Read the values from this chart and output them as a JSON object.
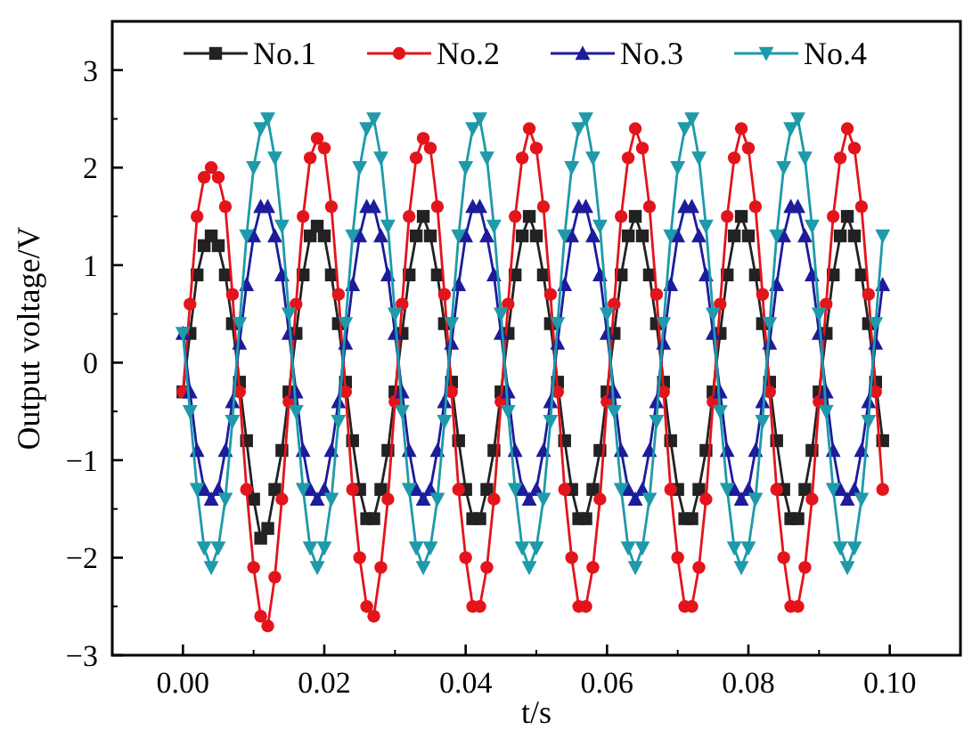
{
  "chart_data": {
    "type": "line",
    "xlabel": "t/s",
    "ylabel": "Output voltage/V",
    "x": [
      0,
      0.001,
      0.002,
      0.003,
      0.004,
      0.005,
      0.006,
      0.007,
      0.008,
      0.009,
      0.01,
      0.011,
      0.012,
      0.013,
      0.014,
      0.015,
      0.016,
      0.017,
      0.018,
      0.019,
      0.02,
      0.021,
      0.022,
      0.023,
      0.024,
      0.025,
      0.026,
      0.027,
      0.028,
      0.029,
      0.03,
      0.031,
      0.032,
      0.033,
      0.034,
      0.035,
      0.036,
      0.037,
      0.038,
      0.039,
      0.04,
      0.041,
      0.042,
      0.043,
      0.044,
      0.045,
      0.046,
      0.047,
      0.048,
      0.049,
      0.05,
      0.051,
      0.052,
      0.053,
      0.054,
      0.055,
      0.056,
      0.057,
      0.058,
      0.059,
      0.06,
      0.061,
      0.062,
      0.063,
      0.064,
      0.065,
      0.066,
      0.067,
      0.068,
      0.069,
      0.07,
      0.071,
      0.072,
      0.073,
      0.074,
      0.075,
      0.076,
      0.077,
      0.078,
      0.079,
      0.08,
      0.081,
      0.082,
      0.083,
      0.084,
      0.085,
      0.086,
      0.087,
      0.088,
      0.089,
      0.09,
      0.091,
      0.092,
      0.093,
      0.094,
      0.095,
      0.096,
      0.097,
      0.098,
      0.099
    ],
    "series": [
      {
        "name": "No.1",
        "color": "#222222",
        "marker": "square",
        "values": [
          -0.3,
          0.3,
          0.9,
          1.2,
          1.3,
          1.2,
          0.9,
          0.4,
          -0.2,
          -0.8,
          -1.4,
          -1.8,
          -1.7,
          -1.3,
          -0.9,
          -0.3,
          0.3,
          0.9,
          1.3,
          1.4,
          1.3,
          0.9,
          0.4,
          -0.2,
          -0.8,
          -1.3,
          -1.6,
          -1.6,
          -1.3,
          -0.9,
          -0.3,
          0.3,
          0.9,
          1.3,
          1.5,
          1.3,
          0.9,
          0.4,
          -0.2,
          -0.8,
          -1.3,
          -1.6,
          -1.6,
          -1.3,
          -0.9,
          -0.3,
          0.3,
          0.9,
          1.3,
          1.5,
          1.3,
          0.9,
          0.4,
          -0.2,
          -0.8,
          -1.3,
          -1.6,
          -1.6,
          -1.3,
          -0.9,
          -0.3,
          0.3,
          0.9,
          1.3,
          1.5,
          1.3,
          0.9,
          0.4,
          -0.2,
          -0.8,
          -1.3,
          -1.6,
          -1.6,
          -1.3,
          -0.9,
          -0.3,
          0.3,
          0.9,
          1.3,
          1.5,
          1.3,
          0.9,
          0.4,
          -0.2,
          -0.8,
          -1.3,
          -1.6,
          -1.6,
          -1.3,
          -0.9,
          -0.3,
          0.3,
          0.9,
          1.3,
          1.5,
          1.3,
          0.9,
          0.4,
          -0.2,
          -0.8
        ]
      },
      {
        "name": "No.2",
        "color": "#e3141c",
        "marker": "circle",
        "values": [
          -0.3,
          0.6,
          1.5,
          1.9,
          2.0,
          1.9,
          1.6,
          0.7,
          -0.3,
          -1.3,
          -2.1,
          -2.6,
          -2.7,
          -2.2,
          -1.4,
          -0.4,
          0.6,
          1.5,
          2.1,
          2.3,
          2.2,
          1.6,
          0.7,
          -0.3,
          -1.3,
          -2.0,
          -2.5,
          -2.6,
          -2.1,
          -1.4,
          -0.4,
          0.6,
          1.5,
          2.1,
          2.3,
          2.2,
          1.6,
          0.7,
          -0.3,
          -1.3,
          -2.0,
          -2.5,
          -2.5,
          -2.1,
          -1.4,
          -0.4,
          0.6,
          1.5,
          2.1,
          2.4,
          2.2,
          1.6,
          0.7,
          -0.3,
          -1.3,
          -2.0,
          -2.5,
          -2.5,
          -2.1,
          -1.4,
          -0.4,
          0.6,
          1.5,
          2.1,
          2.4,
          2.2,
          1.6,
          0.7,
          -0.3,
          -1.3,
          -2.0,
          -2.5,
          -2.5,
          -2.1,
          -1.4,
          -0.4,
          0.6,
          1.5,
          2.1,
          2.4,
          2.2,
          1.6,
          0.7,
          -0.3,
          -1.3,
          -2.0,
          -2.5,
          -2.5,
          -2.1,
          -1.4,
          -0.4,
          0.6,
          1.5,
          2.1,
          2.4,
          2.2,
          1.6,
          0.7,
          -0.3,
          -1.3
        ]
      },
      {
        "name": "No.3",
        "color": "#1c1c9c",
        "marker": "triangle",
        "values": [
          0.3,
          -0.3,
          -0.9,
          -1.3,
          -1.4,
          -1.3,
          -0.9,
          -0.4,
          0.2,
          0.8,
          1.3,
          1.6,
          1.6,
          1.3,
          0.9,
          0.3,
          -0.3,
          -0.9,
          -1.3,
          -1.4,
          -1.3,
          -0.9,
          -0.4,
          0.2,
          0.8,
          1.3,
          1.6,
          1.6,
          1.3,
          0.9,
          0.3,
          -0.3,
          -0.9,
          -1.3,
          -1.4,
          -1.3,
          -0.9,
          -0.4,
          0.2,
          0.8,
          1.3,
          1.6,
          1.6,
          1.3,
          0.9,
          0.3,
          -0.3,
          -0.9,
          -1.3,
          -1.4,
          -1.3,
          -0.9,
          -0.4,
          0.2,
          0.8,
          1.3,
          1.6,
          1.6,
          1.3,
          0.9,
          0.3,
          -0.3,
          -0.9,
          -1.3,
          -1.4,
          -1.3,
          -0.9,
          -0.4,
          0.2,
          0.8,
          1.3,
          1.6,
          1.6,
          1.3,
          0.9,
          0.3,
          -0.3,
          -0.9,
          -1.3,
          -1.4,
          -1.3,
          -0.9,
          -0.4,
          0.2,
          0.8,
          1.3,
          1.6,
          1.6,
          1.3,
          0.9,
          0.3,
          -0.3,
          -0.9,
          -1.3,
          -1.4,
          -1.3,
          -0.9,
          -0.4,
          0.2,
          0.8
        ]
      },
      {
        "name": "No.4",
        "color": "#1e9aaa",
        "marker": "triangle-down",
        "values": [
          0.3,
          -0.5,
          -1.3,
          -1.9,
          -2.1,
          -1.9,
          -1.4,
          -0.6,
          0.4,
          1.3,
          2.0,
          2.4,
          2.5,
          2.1,
          1.4,
          0.5,
          -0.5,
          -1.3,
          -1.9,
          -2.1,
          -1.9,
          -1.4,
          -0.6,
          0.4,
          1.3,
          2.0,
          2.4,
          2.5,
          2.1,
          1.4,
          0.5,
          -0.5,
          -1.3,
          -1.9,
          -2.1,
          -1.9,
          -1.4,
          -0.6,
          0.4,
          1.3,
          2.0,
          2.4,
          2.5,
          2.1,
          1.4,
          0.5,
          -0.5,
          -1.3,
          -1.9,
          -2.1,
          -1.9,
          -1.4,
          -0.6,
          0.4,
          1.3,
          2.0,
          2.4,
          2.5,
          2.1,
          1.4,
          0.5,
          -0.5,
          -1.3,
          -1.9,
          -2.1,
          -1.9,
          -1.4,
          -0.6,
          0.4,
          1.3,
          2.0,
          2.4,
          2.5,
          2.1,
          1.4,
          0.5,
          -0.5,
          -1.3,
          -1.9,
          -2.1,
          -1.9,
          -1.4,
          -0.6,
          0.4,
          1.3,
          2.0,
          2.4,
          2.5,
          2.1,
          1.4,
          0.5,
          -0.5,
          -1.3,
          -1.9,
          -2.1,
          -1.9,
          -1.4,
          -0.6,
          0.4,
          1.3
        ]
      }
    ],
    "xlim": [
      -0.01,
      0.11
    ],
    "xticks": [
      {
        "value": 0,
        "label": "0.00"
      },
      {
        "value": 0.02,
        "label": "0.02"
      },
      {
        "value": 0.04,
        "label": "0.04"
      },
      {
        "value": 0.06,
        "label": "0.06"
      },
      {
        "value": 0.08,
        "label": "0.08"
      },
      {
        "value": 0.1,
        "label": "0.10"
      }
    ],
    "ylim": [
      -3,
      3.5
    ],
    "yticks": [
      {
        "value": -3,
        "label": "−3"
      },
      {
        "value": -2,
        "label": "−2"
      },
      {
        "value": -1,
        "label": "−1"
      },
      0,
      1,
      2,
      3
    ],
    "grid": false,
    "legend": "top",
    "line_style": "solid"
  }
}
